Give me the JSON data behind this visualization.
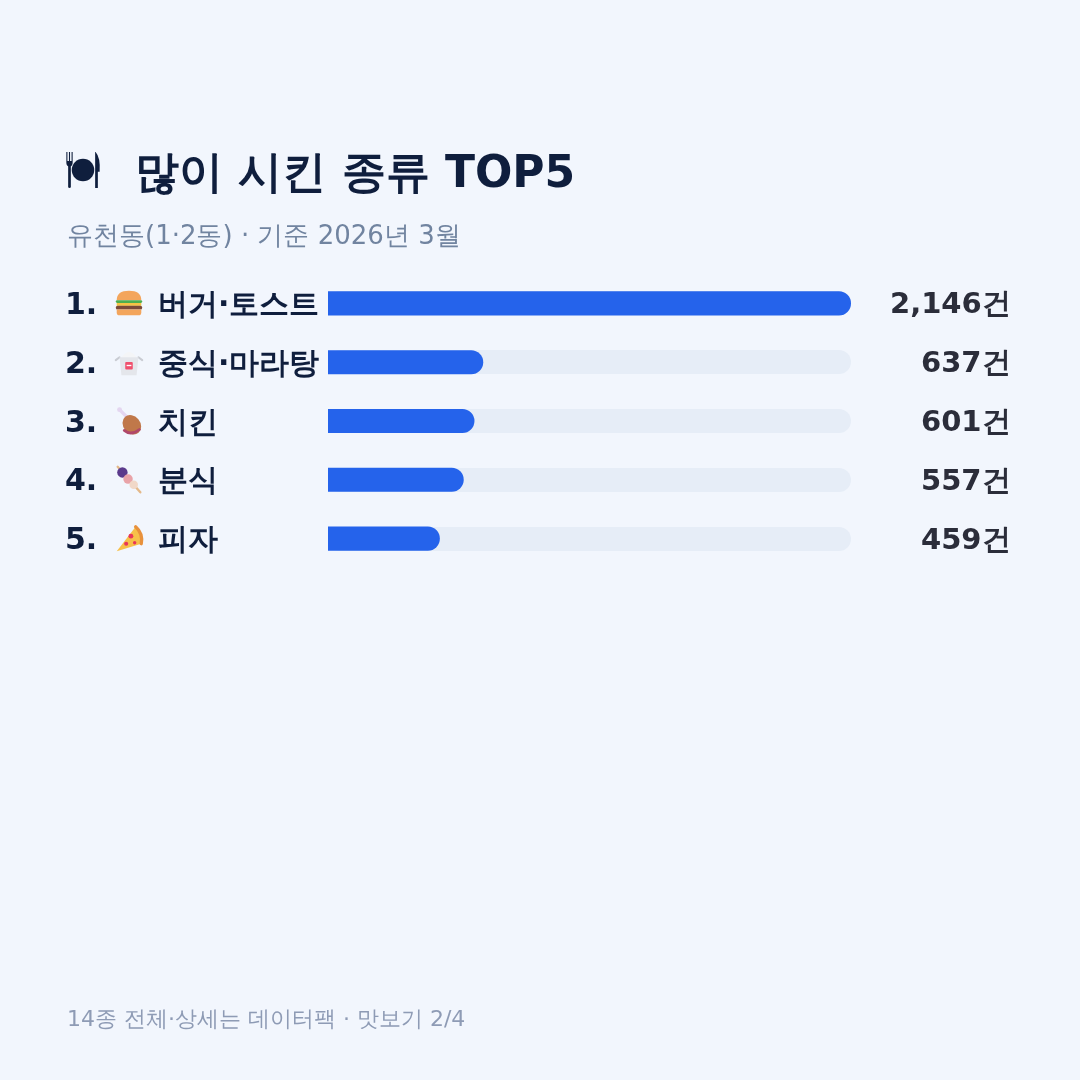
{
  "chart_data": {
    "type": "bar",
    "orientation": "horizontal",
    "title": "많이 시킨 종류 TOP5",
    "subtitle": "유천동(1·2동) · 기준 2026년 3월",
    "categories": [
      "1. 버거·토스트",
      "2. 중식·마라탕",
      "3. 치킨",
      "4. 분식",
      "5. 피자"
    ],
    "values": [
      2146,
      637,
      601,
      557,
      459
    ],
    "value_labels": [
      "2,146건",
      "637건",
      "601건",
      "557건",
      "459건"
    ],
    "color": "#2563eb",
    "xlim": [
      0,
      2146
    ],
    "tick_labels": "y",
    "annotations": [
      "14종 전체·상세는 데이터팩 · 맛보기 2/4"
    ]
  }
}
